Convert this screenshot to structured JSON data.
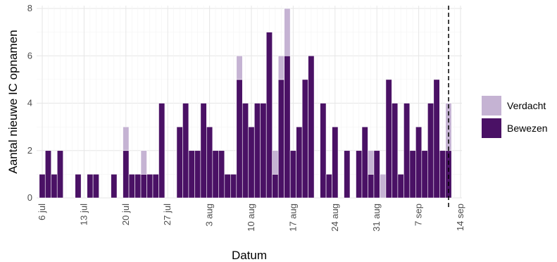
{
  "chart_data": {
    "type": "bar",
    "stacked": true,
    "xlabel": "Datum",
    "ylabel": "Aantal nieuwe IC opnamen",
    "ylim": [
      0,
      8
    ],
    "y_ticks": [
      0,
      2,
      4,
      6,
      8
    ],
    "x_tick_labels": [
      "6 jul",
      "13 jul",
      "20 jul",
      "27 jul",
      "3 aug",
      "10 aug",
      "17 aug",
      "24 aug",
      "31 aug",
      "7 sep",
      "14 sep"
    ],
    "x_range": [
      "2020-07-06",
      "2020-09-14"
    ],
    "vline_date": "2020-09-12",
    "grid": true,
    "legend_position": "right",
    "colors": {
      "Bewezen": "#4a1165",
      "Verdacht": "#c5b3d3"
    },
    "categories": [
      "2020-07-06",
      "2020-07-07",
      "2020-07-08",
      "2020-07-09",
      "2020-07-10",
      "2020-07-11",
      "2020-07-12",
      "2020-07-13",
      "2020-07-14",
      "2020-07-15",
      "2020-07-16",
      "2020-07-17",
      "2020-07-18",
      "2020-07-19",
      "2020-07-20",
      "2020-07-21",
      "2020-07-22",
      "2020-07-23",
      "2020-07-24",
      "2020-07-25",
      "2020-07-26",
      "2020-07-27",
      "2020-07-28",
      "2020-07-29",
      "2020-07-30",
      "2020-07-31",
      "2020-08-01",
      "2020-08-02",
      "2020-08-03",
      "2020-08-04",
      "2020-08-05",
      "2020-08-06",
      "2020-08-07",
      "2020-08-08",
      "2020-08-09",
      "2020-08-10",
      "2020-08-11",
      "2020-08-12",
      "2020-08-13",
      "2020-08-14",
      "2020-08-15",
      "2020-08-16",
      "2020-08-17",
      "2020-08-18",
      "2020-08-19",
      "2020-08-20",
      "2020-08-21",
      "2020-08-22",
      "2020-08-23",
      "2020-08-24",
      "2020-08-25",
      "2020-08-26",
      "2020-08-27",
      "2020-08-28",
      "2020-08-29",
      "2020-08-30",
      "2020-08-31",
      "2020-09-01",
      "2020-09-02",
      "2020-09-03",
      "2020-09-04",
      "2020-09-05",
      "2020-09-06",
      "2020-09-07",
      "2020-09-08",
      "2020-09-09",
      "2020-09-10",
      "2020-09-11",
      "2020-09-12",
      "2020-09-13"
    ],
    "series": [
      {
        "name": "Bewezen",
        "values": [
          1,
          2,
          1,
          2,
          0,
          0,
          1,
          0,
          1,
          1,
          0,
          0,
          1,
          0,
          2,
          1,
          1,
          1,
          1,
          1,
          4,
          0,
          0,
          3,
          4,
          2,
          2,
          4,
          3,
          2,
          2,
          1,
          1,
          5,
          4,
          3,
          4,
          4,
          7,
          1,
          5,
          6,
          2,
          3,
          5,
          6,
          0,
          4,
          1,
          3,
          0,
          2,
          0,
          2,
          3,
          1,
          2,
          0,
          5,
          4,
          1,
          4,
          2,
          3,
          2,
          4,
          5,
          2,
          2,
          0
        ]
      },
      {
        "name": "Verdacht",
        "values": [
          0,
          0,
          0,
          0,
          0,
          0,
          0,
          0,
          0,
          0,
          0,
          0,
          0,
          0,
          1,
          0,
          0,
          1,
          0,
          0,
          0,
          0,
          0,
          0,
          0,
          0,
          0,
          0,
          0,
          0,
          0,
          0,
          0,
          1,
          0,
          0,
          0,
          0,
          0,
          1,
          1,
          2,
          0,
          0,
          0,
          0,
          0,
          0,
          0,
          0,
          0,
          0,
          0,
          0,
          0,
          1,
          0,
          1,
          0,
          0,
          0,
          0,
          0,
          0,
          0,
          0,
          0,
          0,
          2,
          0
        ]
      }
    ]
  },
  "legend": {
    "items": [
      {
        "label": "Verdacht",
        "color": "#c5b3d3"
      },
      {
        "label": "Bewezen",
        "color": "#4a1165"
      }
    ]
  }
}
